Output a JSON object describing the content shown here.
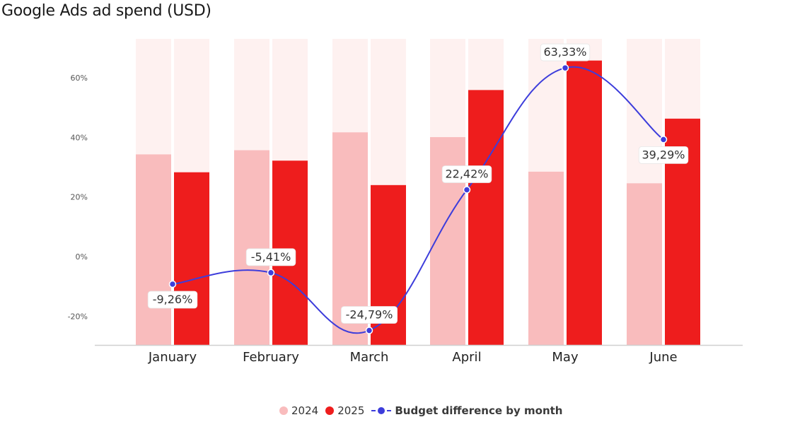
{
  "title": "Google Ads ad spend (USD)",
  "colors": {
    "series_2024": "#f9bcbd",
    "series_2025": "#ee1d1d",
    "background_band": "#fef1f0",
    "line": "#3d3ddb"
  },
  "legend": {
    "label_2024": "2024",
    "label_2025": "2025",
    "label_line": "Budget difference by month"
  },
  "chart_data": {
    "type": "bar",
    "title": "Google Ads ad spend (USD)",
    "categories": [
      "January",
      "February",
      "March",
      "April",
      "May",
      "June"
    ],
    "series": [
      {
        "name": "2024",
        "values": [
          34.3,
          35.7,
          41.7,
          40.1,
          28.5,
          24.6
        ],
        "kind": "bar"
      },
      {
        "name": "2025",
        "values": [
          28.3,
          32.2,
          24.0,
          55.9,
          65.8,
          46.3
        ],
        "kind": "bar"
      },
      {
        "name": "Budget difference by month",
        "kind": "line",
        "values": [
          -9.26,
          -5.41,
          -24.79,
          22.42,
          63.33,
          39.29
        ],
        "labels": [
          "-9,26%",
          "-5,41%",
          "-24,79%",
          "22,42%",
          "63,33%",
          "39,29%"
        ]
      }
    ],
    "y_ticks": [
      "60%",
      "40%",
      "20%",
      "0%",
      "-20%"
    ],
    "y_tick_values": [
      60,
      40,
      20,
      0,
      -20
    ],
    "ylim": [
      -30,
      72
    ],
    "grid": false,
    "legend_position": "bottom-center"
  }
}
